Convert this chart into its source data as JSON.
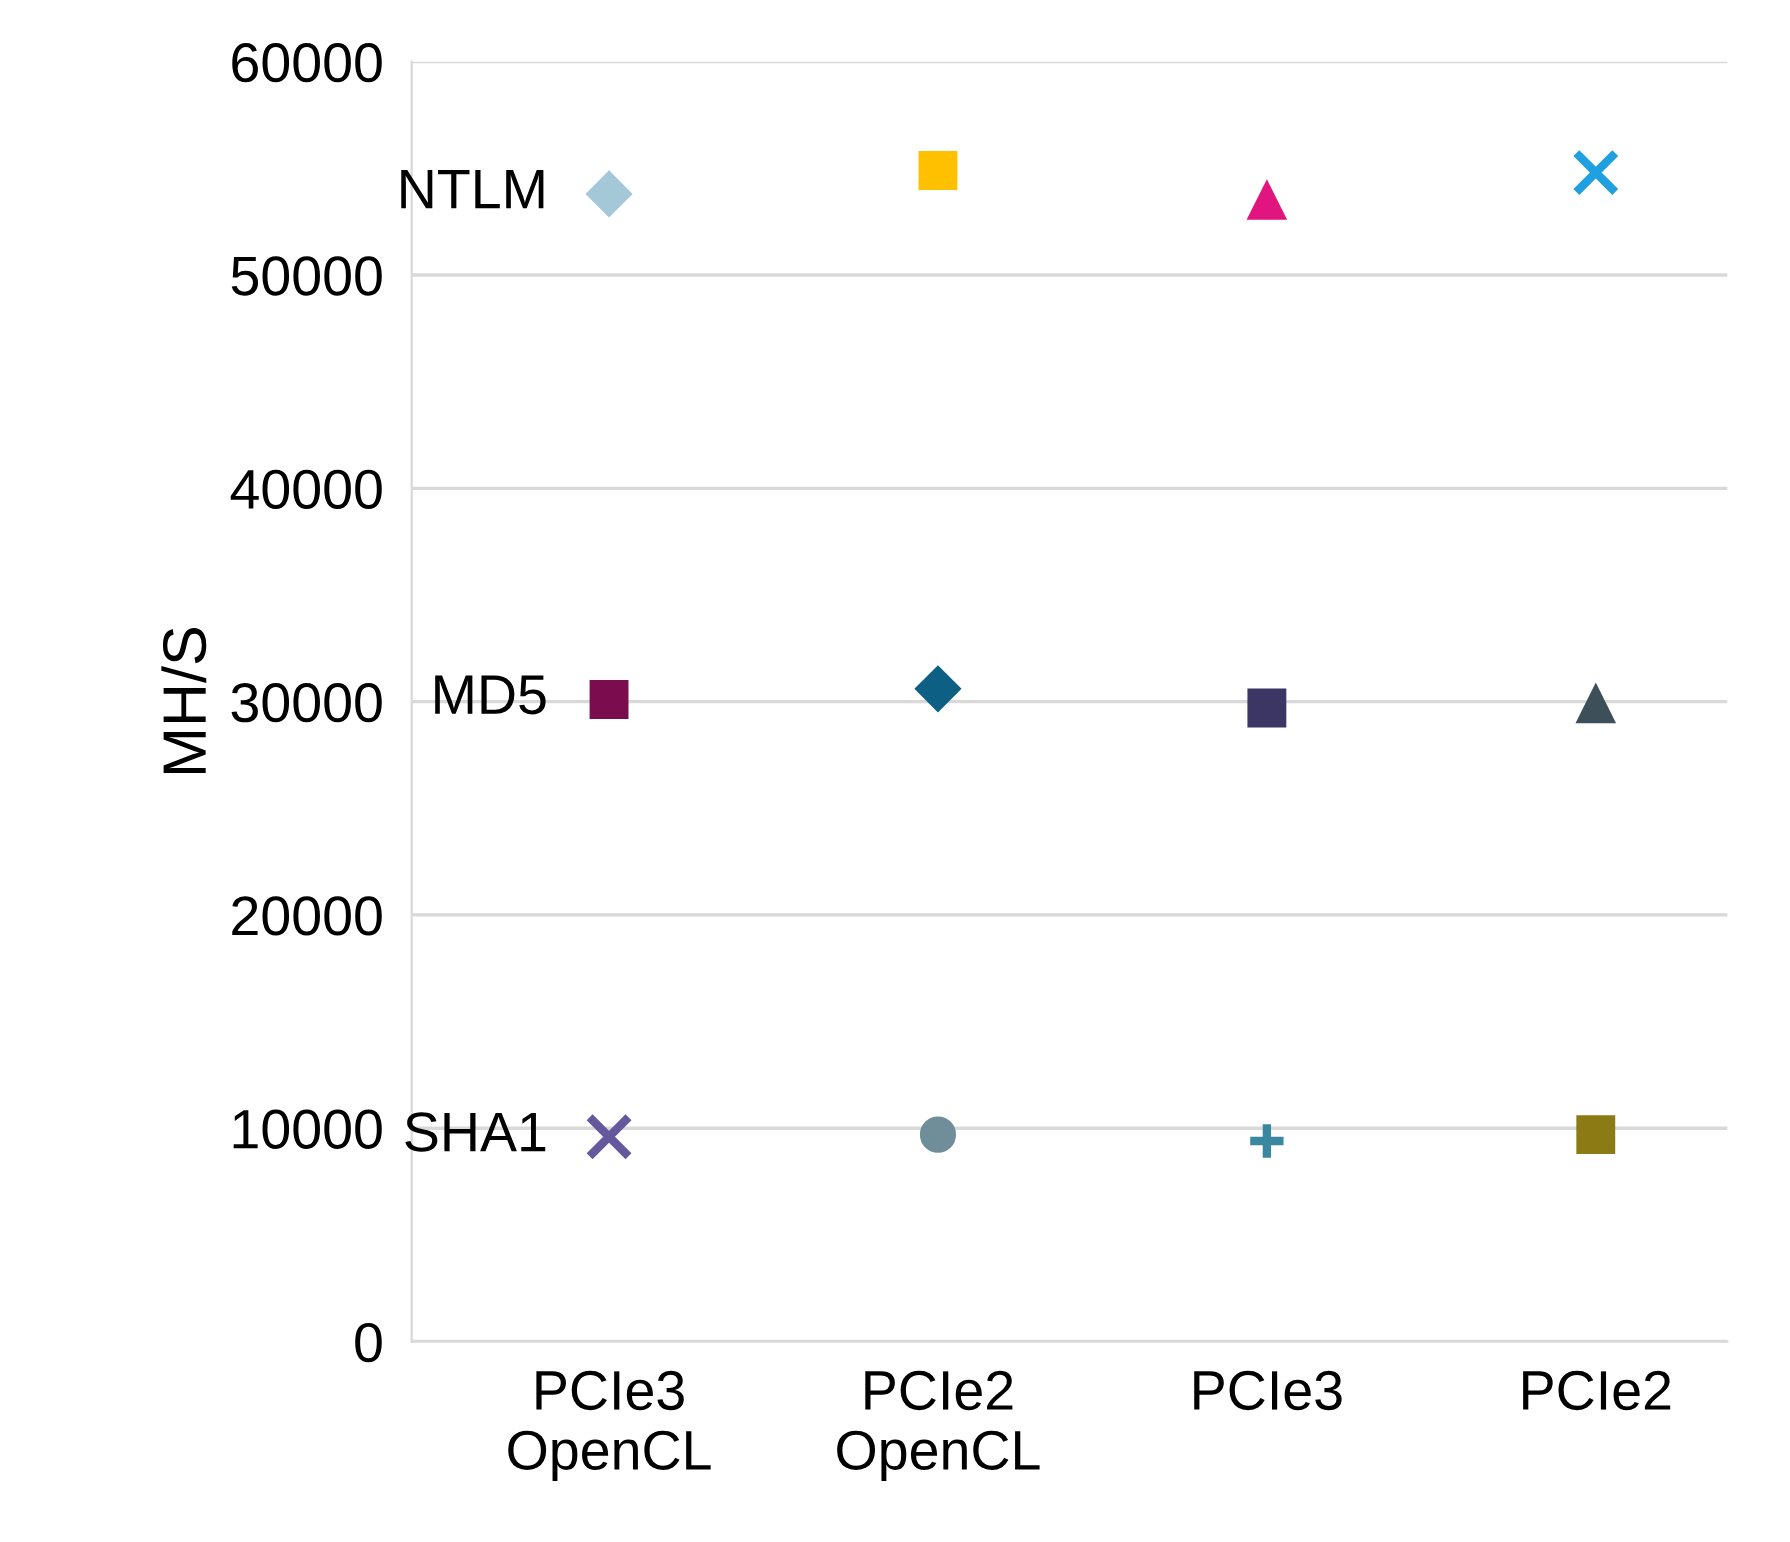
{
  "chart_data": {
    "type": "scatter",
    "ylabel": "MH/S",
    "categories": [
      "PCIe3\nOpenCL",
      "PCIe2\nOpenCL",
      "PCIe3",
      "PCIe2"
    ],
    "series": [
      {
        "x": [
          "PCIe3\nOpenCL"
        ],
        "values": [
          53800
        ],
        "color": "#a5c8d8",
        "marker": "diamond"
      },
      {
        "x": [
          "PCIe2\nOpenCL"
        ],
        "values": [
          54900
        ],
        "color": "#ffc000",
        "marker": "square"
      },
      {
        "x": [
          "PCIe3"
        ],
        "values": [
          53500
        ],
        "color": "#e0157f",
        "marker": "triangle"
      },
      {
        "x": [
          "PCIe2"
        ],
        "values": [
          54800
        ],
        "color": "#1fa0e0",
        "marker": "cross"
      },
      {
        "x": [
          "PCIe3\nOpenCL"
        ],
        "values": [
          30100
        ],
        "color": "#7b0d4e",
        "marker": "square"
      },
      {
        "x": [
          "PCIe2\nOpenCL"
        ],
        "values": [
          30600
        ],
        "color": "#0d5f84",
        "marker": "diamond"
      },
      {
        "x": [
          "PCIe3"
        ],
        "values": [
          29700
        ],
        "color": "#3b3664",
        "marker": "square"
      },
      {
        "x": [
          "PCIe2"
        ],
        "values": [
          29900
        ],
        "color": "#3d4f58",
        "marker": "triangle"
      },
      {
        "x": [
          "PCIe3\nOpenCL"
        ],
        "values": [
          9600
        ],
        "color": "#65589c",
        "marker": "cross"
      },
      {
        "x": [
          "PCIe2\nOpenCL"
        ],
        "values": [
          9700
        ],
        "color": "#6f8e9a",
        "marker": "circle"
      },
      {
        "x": [
          "PCIe3"
        ],
        "values": [
          9400
        ],
        "color": "#3a87a0",
        "marker": "plus"
      },
      {
        "x": [
          "PCIe2"
        ],
        "values": [
          9700
        ],
        "color": "#8c7a14",
        "marker": "square"
      }
    ],
    "annotations": [
      {
        "text": "NTLM",
        "x": "PCIe3\nOpenCL",
        "y": 53800
      },
      {
        "text": "MD5",
        "x": "PCIe3\nOpenCL",
        "y": 30100
      },
      {
        "text": "SHA1",
        "x": "PCIe3\nOpenCL",
        "y": 9600
      }
    ],
    "ylim": [
      0,
      60000
    ],
    "yticks": [
      0,
      10000,
      20000,
      30000,
      40000,
      50000,
      60000
    ],
    "grid": "y",
    "legend": false
  }
}
